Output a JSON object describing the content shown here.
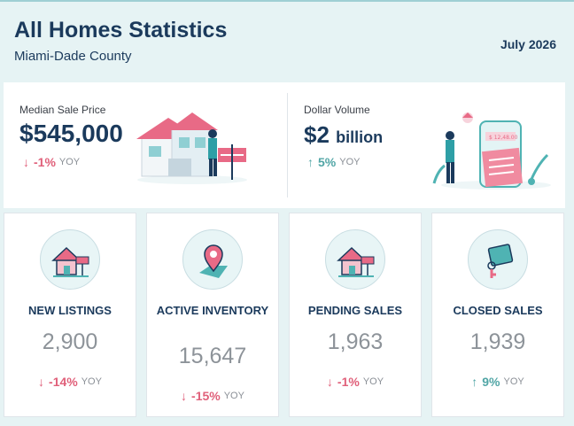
{
  "header": {
    "title": "All Homes Statistics",
    "subtitle": "Miami-Dade County",
    "date": "July 2026"
  },
  "summary": {
    "median": {
      "label": "Median Sale Price",
      "value": "$545,000",
      "change": "-1%",
      "yoy": "YOY",
      "direction": "down",
      "illustration": "house-with-for-sale-sign-illustration"
    },
    "volume": {
      "label": "Dollar Volume",
      "value": "$2",
      "unit": "billion",
      "change": "5%",
      "yoy": "YOY",
      "direction": "up",
      "illustration": "phone-transaction-illustration"
    }
  },
  "stats": [
    {
      "title": "NEW LISTINGS",
      "value": "2,900",
      "change": "-14%",
      "yoy": "YOY",
      "direction": "down",
      "icon": "house-sign-icon"
    },
    {
      "title": "ACTIVE INVENTORY",
      "value": "15,647",
      "change": "-15%",
      "yoy": "YOY",
      "direction": "down",
      "icon": "location-pin-icon"
    },
    {
      "title": "PENDING SALES",
      "value": "1,963",
      "change": "-1%",
      "yoy": "YOY",
      "direction": "down",
      "icon": "house-sign-icon"
    },
    {
      "title": "CLOSED SALES",
      "value": "1,939",
      "change": "9%",
      "yoy": "YOY",
      "direction": "up",
      "icon": "key-icon"
    }
  ],
  "colors": {
    "navy": "#1b3a5c",
    "down": "#e0607a",
    "up": "#52a6a6",
    "teal": "#4fb3b3",
    "pink": "#e86a86"
  }
}
